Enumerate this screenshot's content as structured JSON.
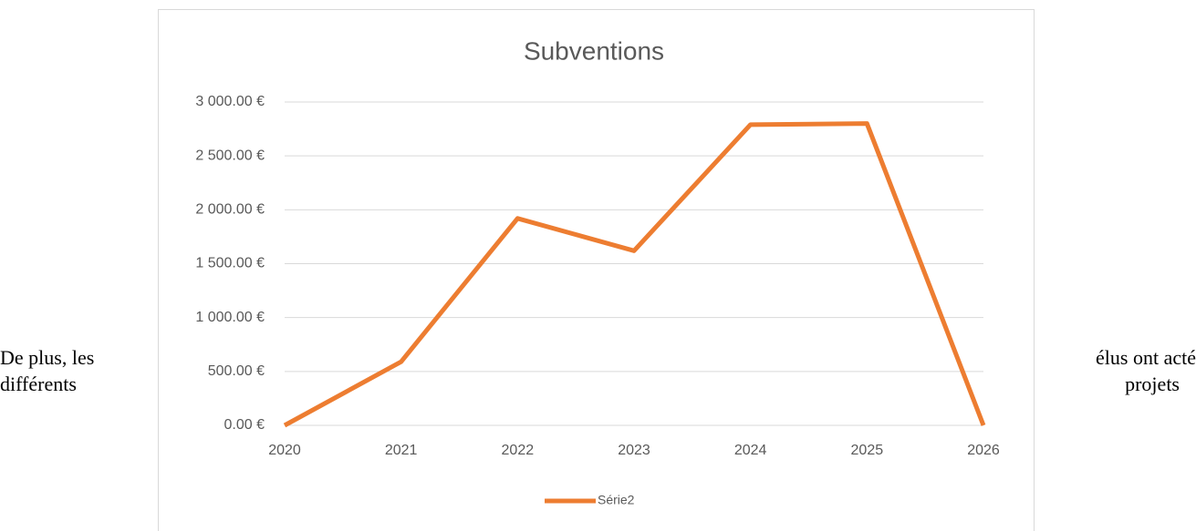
{
  "document": {
    "lines": [
      "De plus, les",
      "élus ont acté",
      "différents",
      "projets"
    ]
  },
  "chart_data": {
    "type": "line",
    "title": "Subventions",
    "categories": [
      "2020",
      "2021",
      "2022",
      "2023",
      "2024",
      "2025",
      "2026"
    ],
    "series": [
      {
        "name": "Série2",
        "color": "#ed7d31",
        "values": [
          0,
          590,
          1920,
          1620,
          2790,
          2800,
          0
        ]
      }
    ],
    "ylim": [
      0,
      3000
    ],
    "yticks": [
      {
        "value": 0,
        "label": "0.00 €"
      },
      {
        "value": 500,
        "label": "500.00 €"
      },
      {
        "value": 1000,
        "label": "1 000.00 €"
      },
      {
        "value": 1500,
        "label": "1 500.00 €"
      },
      {
        "value": 2000,
        "label": "2 000.00 €"
      },
      {
        "value": 2500,
        "label": "2 500.00 €"
      },
      {
        "value": 3000,
        "label": "3 000.00 €"
      }
    ],
    "grid": true,
    "legend": "bottom"
  }
}
